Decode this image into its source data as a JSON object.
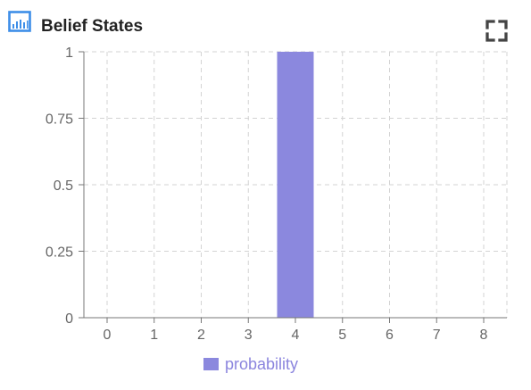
{
  "header": {
    "title": "Belief States",
    "chart_icon": "bar-chart-icon",
    "expand_icon": "fullscreen-expand-icon"
  },
  "colors": {
    "bar": "#8b88de",
    "icon": "#3d8ee8",
    "grid": "#d3d3d3",
    "axis": "#777777",
    "tick_text": "#666666"
  },
  "chart_data": {
    "type": "bar",
    "categories": [
      "0",
      "1",
      "2",
      "3",
      "4",
      "5",
      "6",
      "7",
      "8"
    ],
    "series": [
      {
        "name": "probability",
        "values": [
          0,
          0,
          0,
          0,
          1,
          0,
          0,
          0,
          0
        ]
      }
    ],
    "y_ticks": [
      "0",
      "0.25",
      "0.5",
      "0.75",
      "1"
    ],
    "ylim": [
      0,
      1
    ],
    "title": "",
    "xlabel": "",
    "ylabel": "",
    "grid": true,
    "legend": "bottom-center"
  }
}
